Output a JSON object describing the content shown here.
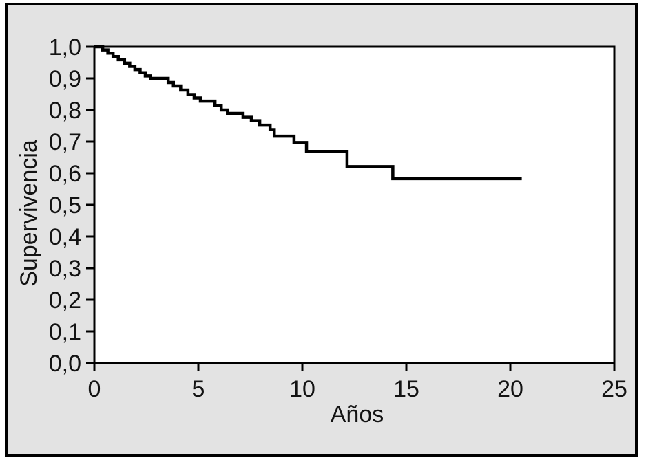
{
  "figure": {
    "background_color": "#e3e3e3",
    "plot_background_color": "#ffffff",
    "frame_color": "#000000",
    "outer_border_color": "#000000",
    "text_color": "#131313"
  },
  "chart_data": {
    "type": "line",
    "subtype": "kaplan-meier-survival-step",
    "title": "",
    "xlabel": "Años",
    "ylabel": "Supervivencia",
    "xlim": [
      0,
      25
    ],
    "ylim": [
      0.0,
      1.0
    ],
    "grid": false,
    "legend": "none",
    "line_color": "#000000",
    "x_ticks": [
      {
        "v": 0,
        "label": "0"
      },
      {
        "v": 5,
        "label": "5"
      },
      {
        "v": 10,
        "label": "10"
      },
      {
        "v": 15,
        "label": "15"
      },
      {
        "v": 20,
        "label": "20"
      },
      {
        "v": 25,
        "label": "25"
      }
    ],
    "y_ticks": [
      {
        "v": 0.0,
        "label": "0,0"
      },
      {
        "v": 0.1,
        "label": "0,1"
      },
      {
        "v": 0.2,
        "label": "0,2"
      },
      {
        "v": 0.3,
        "label": "0,3"
      },
      {
        "v": 0.4,
        "label": "0,4"
      },
      {
        "v": 0.5,
        "label": "0,5"
      },
      {
        "v": 0.6,
        "label": "0,6"
      },
      {
        "v": 0.7,
        "label": "0,7"
      },
      {
        "v": 0.8,
        "label": "0,8"
      },
      {
        "v": 0.9,
        "label": "0,9"
      },
      {
        "v": 1.0,
        "label": "1,0"
      }
    ],
    "series": [
      {
        "name": "Supervivencia",
        "style": "step-post",
        "points": [
          [
            0,
            1.0
          ],
          [
            0.4,
            0.99
          ],
          [
            0.65,
            0.98
          ],
          [
            0.9,
            0.969
          ],
          [
            1.15,
            0.959
          ],
          [
            1.45,
            0.948
          ],
          [
            1.7,
            0.938
          ],
          [
            1.95,
            0.928
          ],
          [
            2.2,
            0.918
          ],
          [
            2.45,
            0.908
          ],
          [
            2.7,
            0.9
          ],
          [
            3.55,
            0.887
          ],
          [
            3.8,
            0.876
          ],
          [
            4.15,
            0.863
          ],
          [
            4.5,
            0.849
          ],
          [
            4.8,
            0.838
          ],
          [
            5.1,
            0.828
          ],
          [
            5.8,
            0.814
          ],
          [
            6.1,
            0.8
          ],
          [
            6.4,
            0.789
          ],
          [
            7.15,
            0.777
          ],
          [
            7.55,
            0.766
          ],
          [
            7.95,
            0.752
          ],
          [
            8.45,
            0.738
          ],
          [
            8.65,
            0.717
          ],
          [
            9.6,
            0.697
          ],
          [
            10.2,
            0.669
          ],
          [
            12.15,
            0.621
          ],
          [
            14.35,
            0.583
          ]
        ],
        "end_t": 20.55,
        "final_value": 0.583
      }
    ]
  }
}
